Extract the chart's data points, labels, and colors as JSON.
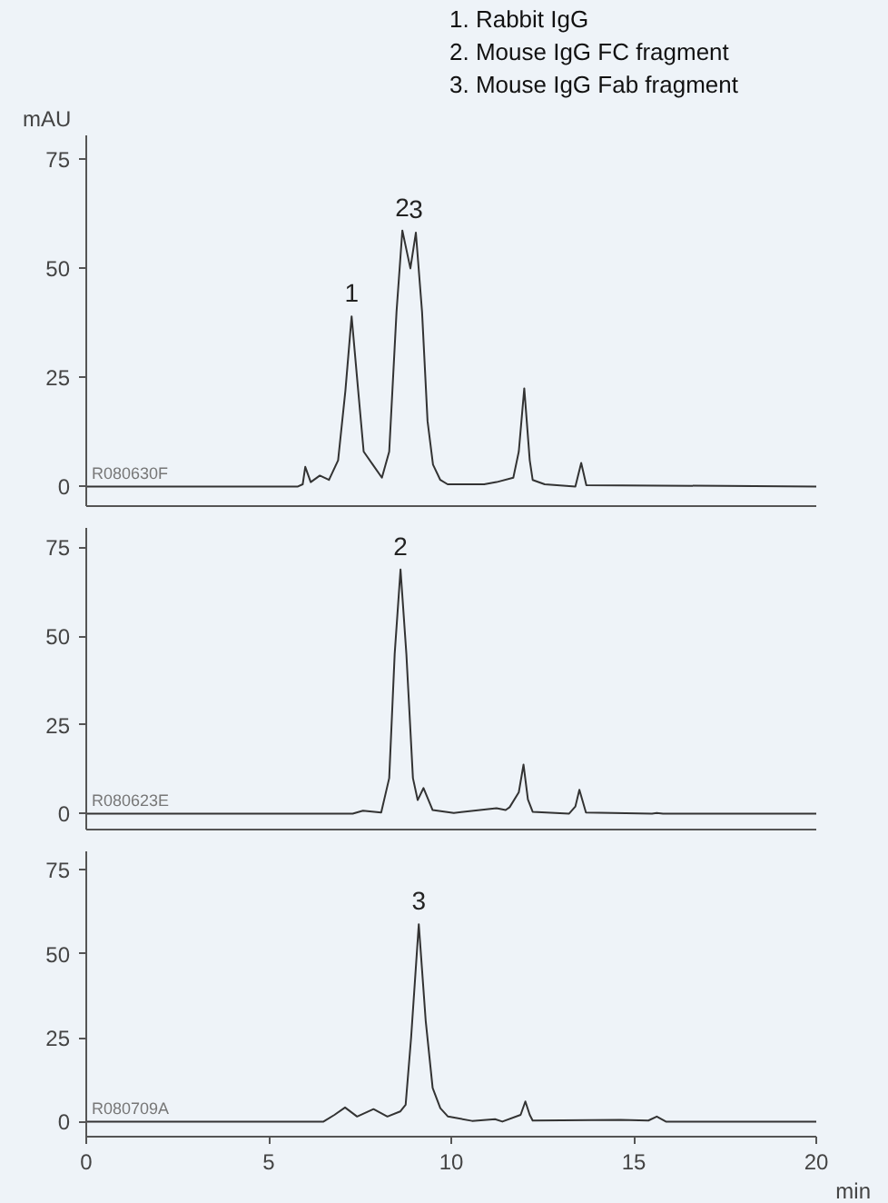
{
  "chart_data": [
    {
      "type": "line",
      "ylabel": "mAU",
      "annotations": [
        "1. Rabbit IgG",
        "2. Mouse IgG FC fragment",
        "3. Mouse IgG Fab fragment",
        "R080630F",
        {
          "text": "1",
          "x": 7.27,
          "y": 39
        },
        {
          "text": "2",
          "x": 8.66,
          "y": 58.7
        },
        {
          "text": "3",
          "x": 9.03,
          "y": 58.2
        }
      ],
      "x": [
        0,
        5.8,
        5.93,
        6.0,
        6.15,
        6.4,
        6.65,
        6.9,
        7.1,
        7.27,
        7.45,
        7.6,
        7.85,
        8.1,
        8.3,
        8.5,
        8.66,
        8.88,
        9.03,
        9.2,
        9.35,
        9.5,
        9.7,
        9.9,
        10.9,
        11.24,
        11.7,
        11.85,
        12.0,
        12.15,
        12.23,
        12.56,
        13.4,
        13.56,
        13.7,
        20
      ],
      "series": [
        {
          "color": "#333333",
          "values": [
            0,
            0,
            0.5,
            4.5,
            1,
            2.5,
            1.5,
            6,
            22,
            39,
            22,
            8,
            5,
            2,
            8,
            40,
            58.7,
            50,
            58.2,
            40,
            15,
            5,
            1.5,
            0.5,
            0.5,
            1,
            2,
            8,
            22.5,
            6,
            1.5,
            0.5,
            0,
            5.4,
            0.3,
            0
          ]
        }
      ],
      "xlim": [
        0,
        20
      ],
      "ylim": [
        -4.5,
        80.5
      ],
      "yticks": [
        0,
        25,
        50,
        75
      ],
      "tick_labels": "y"
    },
    {
      "type": "line",
      "annotations": [
        "R080623E",
        {
          "text": "2",
          "x": 8.61,
          "y": 68.8
        }
      ],
      "x": [
        0,
        7.3,
        7.58,
        8.08,
        8.3,
        8.45,
        8.61,
        8.77,
        8.95,
        9.08,
        9.24,
        9.49,
        10.07,
        11.24,
        11.49,
        11.6,
        11.85,
        11.98,
        12.1,
        12.23,
        13.23,
        13.4,
        13.51,
        13.69,
        15.5,
        15.63,
        15.8,
        20
      ],
      "series": [
        {
          "color": "#333333",
          "values": [
            0,
            0,
            0.8,
            0.3,
            10,
            45,
            68.8,
            45,
            10,
            3.8,
            7.2,
            1,
            0.2,
            1.5,
            1,
            1.8,
            6,
            13.8,
            4,
            0.5,
            0,
            2,
            6.7,
            0.3,
            0,
            0.2,
            0,
            0
          ]
        }
      ],
      "xlim": [
        0,
        20
      ],
      "ylim": [
        -4.5,
        80.5
      ],
      "yticks": [
        0,
        25,
        50,
        75
      ],
      "tick_labels": "y"
    },
    {
      "type": "line",
      "xlabel": "min",
      "annotations": [
        "R080709A",
        {
          "text": "3",
          "x": 9.11,
          "y": 58.8
        }
      ],
      "x": [
        0,
        6.5,
        6.8,
        7.09,
        7.42,
        7.87,
        8.25,
        8.6,
        8.75,
        8.9,
        9.11,
        9.3,
        9.49,
        9.7,
        9.91,
        10.57,
        11.2,
        11.4,
        11.9,
        12.03,
        12.15,
        12.23,
        14.64,
        15.4,
        15.63,
        15.88,
        20
      ],
      "series": [
        {
          "color": "#333333",
          "values": [
            0,
            0,
            2,
            4.2,
            1.5,
            3.7,
            1.5,
            3,
            5,
            25,
            58.8,
            30,
            10,
            4,
            1.5,
            0.2,
            0.7,
            0,
            2,
            6,
            2,
            0.3,
            0.5,
            0.3,
            1.5,
            0,
            0
          ]
        }
      ],
      "xlim": [
        0,
        20
      ],
      "ylim": [
        -4.5,
        80.5
      ],
      "xticks": [
        0,
        5,
        10,
        15,
        20
      ],
      "yticks": [
        0,
        25,
        50,
        75
      ]
    }
  ]
}
